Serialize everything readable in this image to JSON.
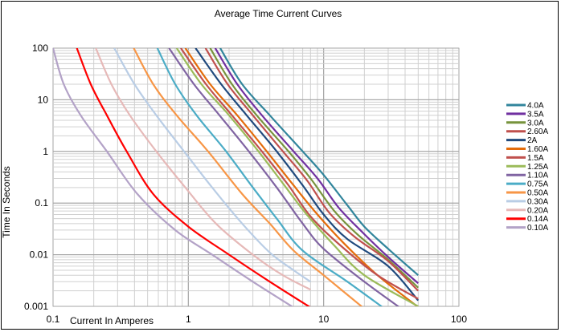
{
  "chart_data": {
    "type": "line",
    "title": "Average Time Current Curves",
    "xlabel": "Current In Amperes",
    "ylabel": "Time In Seconds",
    "xscale": "log",
    "yscale": "log",
    "xlim": [
      0.1,
      100
    ],
    "ylim": [
      0.001,
      100
    ],
    "x_ticks": [
      0.1,
      1,
      10,
      100
    ],
    "x_tick_labels": [
      "0.1",
      "1",
      "10",
      "100"
    ],
    "y_ticks": [
      100,
      10,
      1,
      0.1,
      0.01,
      0.001
    ],
    "y_tick_labels": [
      "100",
      "10",
      "1",
      "0.1",
      "0.01",
      "0.001"
    ],
    "grid": true,
    "legend_position": "right",
    "series": [
      {
        "name": "4.0A",
        "color": "#31859C",
        "points": [
          [
            1.72,
            100
          ],
          [
            2.5,
            20
          ],
          [
            4,
            5
          ],
          [
            7,
            1
          ],
          [
            10,
            0.35
          ],
          [
            15,
            0.09
          ],
          [
            20,
            0.035
          ],
          [
            30,
            0.013
          ],
          [
            50,
            0.004
          ]
        ]
      },
      {
        "name": "3.5A",
        "color": "#7030A0",
        "points": [
          [
            1.58,
            100
          ],
          [
            2.3,
            20
          ],
          [
            3.5,
            5
          ],
          [
            6,
            1
          ],
          [
            9,
            0.3
          ],
          [
            13,
            0.08
          ],
          [
            20,
            0.025
          ],
          [
            30,
            0.009
          ],
          [
            50,
            0.0028
          ]
        ]
      },
      {
        "name": "3.0A",
        "color": "#77933C",
        "points": [
          [
            1.45,
            100
          ],
          [
            2.1,
            20
          ],
          [
            3.2,
            5
          ],
          [
            5.5,
            1
          ],
          [
            8,
            0.3
          ],
          [
            12,
            0.07
          ],
          [
            18,
            0.024
          ],
          [
            30,
            0.008
          ],
          [
            50,
            0.0023
          ]
        ]
      },
      {
        "name": "2.60A",
        "color": "#C0504D",
        "points": [
          [
            1.34,
            100
          ],
          [
            1.95,
            20
          ],
          [
            3,
            5
          ],
          [
            5,
            1
          ],
          [
            7.5,
            0.28
          ],
          [
            11,
            0.065
          ],
          [
            17,
            0.022
          ],
          [
            30,
            0.0075
          ],
          [
            50,
            0.002
          ]
        ]
      },
      {
        "name": "2A",
        "color": "#1F497D",
        "points": [
          [
            1.13,
            100
          ],
          [
            1.75,
            20
          ],
          [
            2.7,
            5
          ],
          [
            4.5,
            1
          ],
          [
            7,
            0.22
          ],
          [
            10,
            0.06
          ],
          [
            15,
            0.02
          ],
          [
            30,
            0.006
          ],
          [
            50,
            0.0013
          ]
        ]
      },
      {
        "name": "1.60A",
        "color": "#E46C0A",
        "points": [
          [
            0.95,
            100
          ],
          [
            1.45,
            20
          ],
          [
            2.3,
            5
          ],
          [
            3.8,
            1
          ],
          [
            6,
            0.22
          ],
          [
            9,
            0.06
          ],
          [
            14,
            0.017
          ],
          [
            25,
            0.004
          ],
          [
            50,
            0.00097
          ]
        ]
      },
      {
        "name": "1.5A",
        "color": "#C0504D",
        "points": [
          [
            0.88,
            100
          ],
          [
            1.35,
            20
          ],
          [
            2.1,
            5
          ],
          [
            3.5,
            1
          ],
          [
            5.5,
            0.22
          ],
          [
            8,
            0.055
          ],
          [
            13,
            0.016
          ],
          [
            25,
            0.004
          ],
          [
            50,
            0.0014
          ]
        ]
      },
      {
        "name": "1.25A",
        "color": "#9BBB59",
        "points": [
          [
            0.82,
            100
          ],
          [
            1.25,
            20
          ],
          [
            2,
            5
          ],
          [
            3.3,
            1
          ],
          [
            5,
            0.24
          ],
          [
            7.5,
            0.06
          ],
          [
            12,
            0.015
          ],
          [
            20,
            0.004
          ],
          [
            50,
            0.001
          ]
        ]
      },
      {
        "name": "1.10A",
        "color": "#8064A2",
        "points": [
          [
            0.72,
            100
          ],
          [
            1.1,
            20
          ],
          [
            1.7,
            5
          ],
          [
            2.8,
            1
          ],
          [
            4.5,
            0.2
          ],
          [
            7,
            0.04
          ],
          [
            10,
            0.013
          ],
          [
            20,
            0.003
          ],
          [
            40,
            0.0008
          ]
        ]
      },
      {
        "name": "0.75A",
        "color": "#4BACC6",
        "points": [
          [
            0.59,
            100
          ],
          [
            0.8,
            20
          ],
          [
            1.15,
            5
          ],
          [
            1.9,
            1
          ],
          [
            3,
            0.2
          ],
          [
            4.5,
            0.05
          ],
          [
            7,
            0.012
          ],
          [
            15,
            0.003
          ],
          [
            30,
            0.0008
          ]
        ]
      },
      {
        "name": "0.50A",
        "color": "#F79646",
        "points": [
          [
            0.395,
            100
          ],
          [
            0.55,
            20
          ],
          [
            0.82,
            5
          ],
          [
            1.4,
            1
          ],
          [
            2.5,
            0.15
          ],
          [
            4,
            0.04
          ],
          [
            6,
            0.012
          ],
          [
            10,
            0.004
          ],
          [
            20,
            0.0009
          ]
        ]
      },
      {
        "name": "0.30A",
        "color": "#B9CDE5",
        "points": [
          [
            0.283,
            100
          ],
          [
            0.4,
            20
          ],
          [
            0.58,
            5
          ],
          [
            0.93,
            1
          ],
          [
            1.5,
            0.2
          ],
          [
            2.5,
            0.04
          ],
          [
            4,
            0.011
          ],
          [
            6,
            0.005
          ],
          [
            8,
            0.003
          ]
        ]
      },
      {
        "name": "0.20A",
        "color": "#E6B9B8",
        "points": [
          [
            0.207,
            100
          ],
          [
            0.27,
            20
          ],
          [
            0.37,
            5
          ],
          [
            0.58,
            1
          ],
          [
            0.95,
            0.2
          ],
          [
            1.6,
            0.04
          ],
          [
            3,
            0.01
          ],
          [
            5,
            0.004
          ],
          [
            8,
            0.0021
          ]
        ]
      },
      {
        "name": "0.14A",
        "color": "#FF0000",
        "points": [
          [
            0.15,
            100
          ],
          [
            0.19,
            20
          ],
          [
            0.25,
            5
          ],
          [
            0.35,
            1
          ],
          [
            0.55,
            0.15
          ],
          [
            1,
            0.035
          ],
          [
            2,
            0.01
          ],
          [
            4,
            0.003
          ],
          [
            8,
            0.00095
          ]
        ]
      },
      {
        "name": "0.10A",
        "color": "#B3A2C7",
        "points": [
          [
            0.1,
            100
          ],
          [
            0.12,
            20
          ],
          [
            0.16,
            5
          ],
          [
            0.25,
            1
          ],
          [
            0.42,
            0.15
          ],
          [
            0.8,
            0.03
          ],
          [
            1.5,
            0.01
          ],
          [
            3,
            0.003
          ],
          [
            6,
            0.00095
          ]
        ]
      }
    ]
  }
}
